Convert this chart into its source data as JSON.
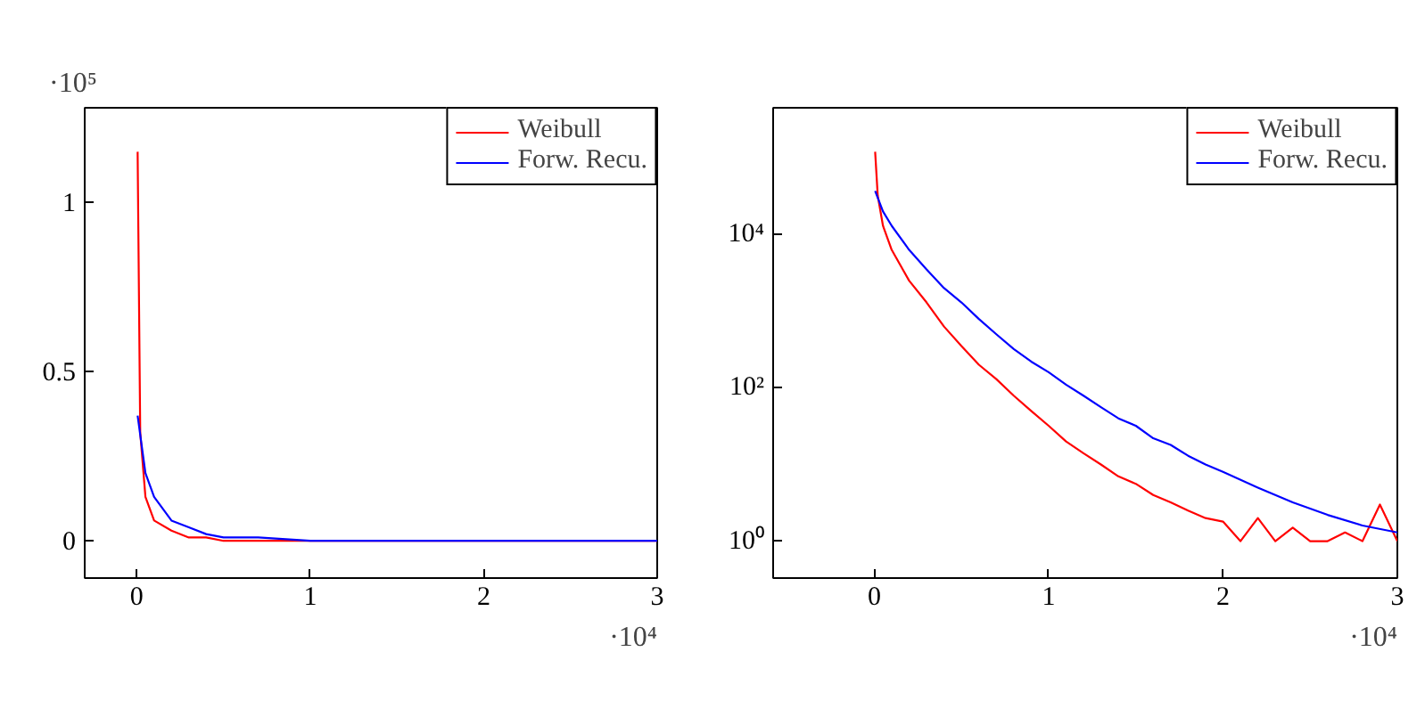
{
  "chart_data": [
    {
      "type": "line",
      "annotations": [
        "·10⁵",
        "·10⁴"
      ],
      "xlim": [
        -0.3,
        3
      ],
      "ylim": [
        -0.11,
        1.28
      ],
      "xticks": [
        0,
        1,
        2,
        3
      ],
      "yticks": [
        0,
        0.5,
        1
      ],
      "legend": "top right",
      "grid": false,
      "series": [
        {
          "name": "Weibull",
          "color": "#ff0000",
          "x": [
            0.005,
            0.02,
            0.05,
            0.1,
            0.2,
            0.3,
            0.4,
            0.5,
            0.7,
            1,
            2,
            3
          ],
          "values": [
            1.15,
            0.32,
            0.13,
            0.06,
            0.03,
            0.01,
            0.01,
            0,
            0,
            0,
            0,
            0
          ]
        },
        {
          "name": "Forw. Recu.",
          "color": "#0000ff",
          "x": [
            0.005,
            0.05,
            0.1,
            0.2,
            0.3,
            0.4,
            0.5,
            0.7,
            1,
            2,
            3
          ],
          "values": [
            0.37,
            0.2,
            0.13,
            0.06,
            0.04,
            0.02,
            0.01,
            0.01,
            0,
            0,
            0
          ]
        }
      ]
    },
    {
      "type": "line",
      "log": "y",
      "annotations": [
        "·10⁴"
      ],
      "xlim": [
        -0.58,
        3
      ],
      "ylim": [
        0.33,
        450000
      ],
      "xticks": [
        0,
        1,
        2,
        3
      ],
      "yticks": [
        {
          "value": 1,
          "label": "10⁰"
        },
        {
          "value": 100,
          "label": "10²"
        },
        {
          "value": 10000,
          "label": "10⁴"
        }
      ],
      "legend": "top right",
      "grid": false,
      "series": [
        {
          "name": "Weibull",
          "color": "#ff0000",
          "x": [
            0.005,
            0.02,
            0.05,
            0.1,
            0.2,
            0.3,
            0.4,
            0.5,
            0.6,
            0.7,
            0.8,
            0.9,
            1,
            1.1,
            1.2,
            1.3,
            1.4,
            1.5,
            1.6,
            1.7,
            1.8,
            1.9,
            2,
            2.1,
            2.2,
            2.3,
            2.4,
            2.5,
            2.6,
            2.7,
            2.8,
            2.9,
            3
          ],
          "values": [
            120000,
            32000,
            13000,
            6300,
            2500,
            1300,
            630,
            350,
            200,
            130,
            79,
            50,
            32,
            20,
            14,
            10,
            7,
            5.6,
            4,
            3.2,
            2.5,
            2,
            1.8,
            1,
            2,
            1,
            1.5,
            1,
            1,
            1.3,
            1,
            3,
            1
          ]
        },
        {
          "name": "Forw. Recu.",
          "color": "#0000ff",
          "x": [
            0.005,
            0.05,
            0.1,
            0.2,
            0.3,
            0.4,
            0.5,
            0.6,
            0.7,
            0.8,
            0.9,
            1,
            1.1,
            1.2,
            1.3,
            1.4,
            1.5,
            1.6,
            1.7,
            1.8,
            1.9,
            2,
            2.2,
            2.4,
            2.6,
            2.8,
            3
          ],
          "values": [
            37000,
            20000,
            13000,
            6300,
            3500,
            2000,
            1300,
            790,
            500,
            320,
            220,
            160,
            110,
            79,
            56,
            40,
            32,
            22,
            18,
            13,
            10,
            8,
            5,
            3.2,
            2.2,
            1.6,
            1.3
          ]
        }
      ]
    }
  ]
}
